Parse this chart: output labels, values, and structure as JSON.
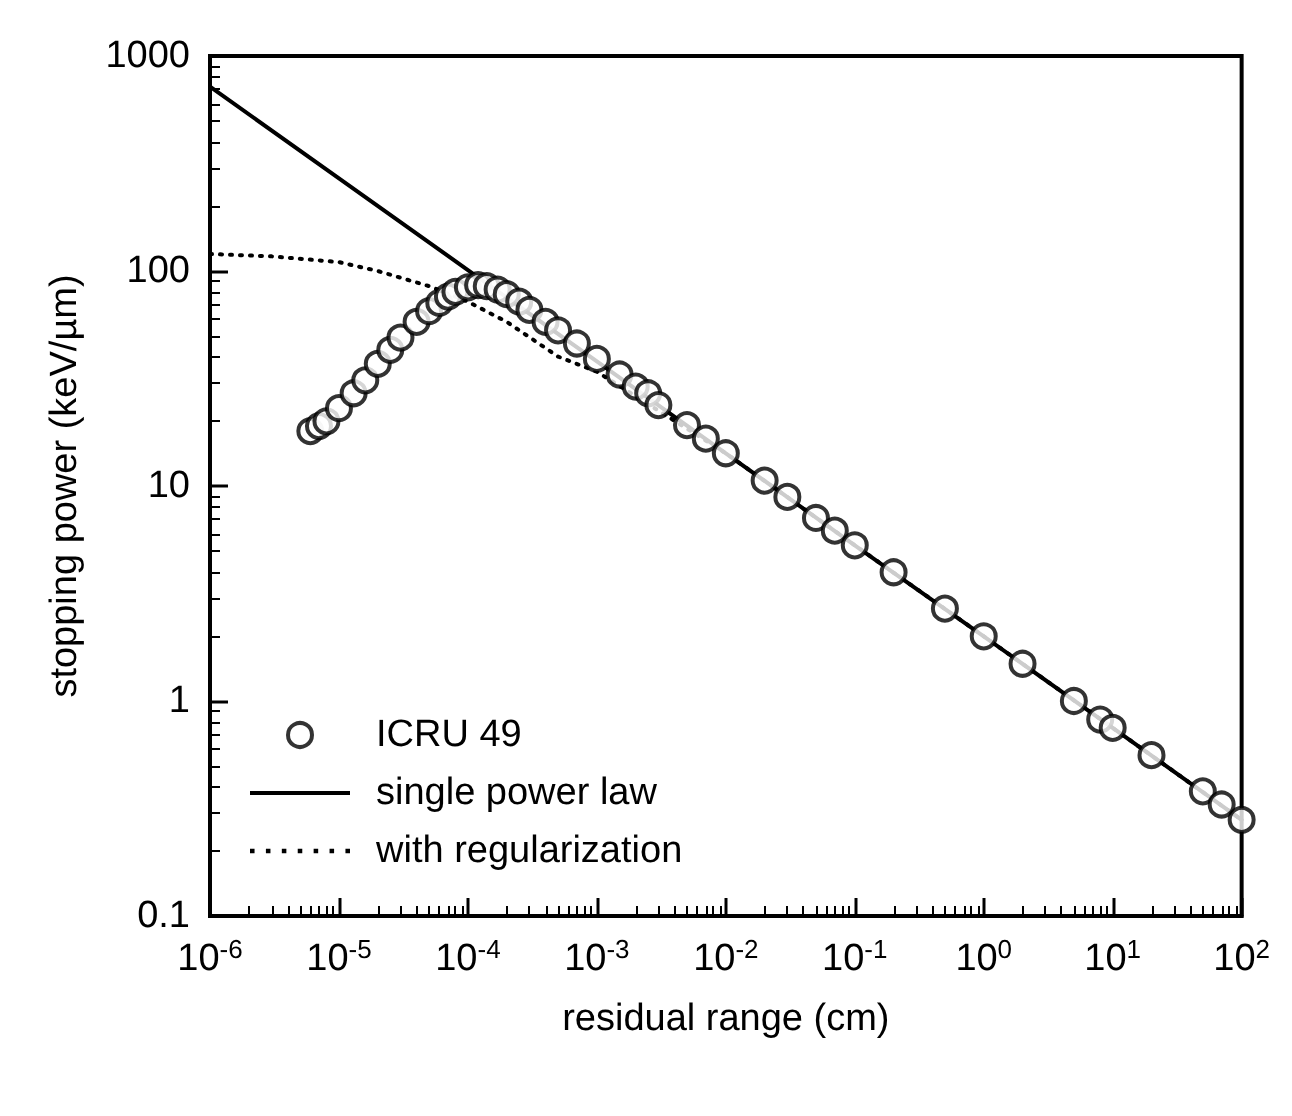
{
  "chart_data": {
    "type": "scatter",
    "xlabel": "residual range (cm)",
    "ylabel": "stopping power (keV/µm)",
    "log": "xy",
    "xlim": [
      1e-06,
      100
    ],
    "ylim": [
      0.1,
      1000
    ],
    "xticks": [
      {
        "value": 1e-06,
        "label": "10$^{-6}$"
      },
      {
        "value": 1e-05,
        "label": "10$^{-5}$"
      },
      {
        "value": 0.0001,
        "label": "10$^{-4}$"
      },
      {
        "value": 0.001,
        "label": "10$^{-3}$"
      },
      {
        "value": 0.01,
        "label": "10$^{-2}$"
      },
      {
        "value": 0.1,
        "label": "10$^{-1}$"
      },
      {
        "value": 1,
        "label": "10$^{0}$"
      },
      {
        "value": 10,
        "label": "10$^{1}$"
      },
      {
        "value": 100,
        "label": "10$^{2}$"
      }
    ],
    "yticks": [
      0.1,
      1,
      10,
      100,
      1000
    ],
    "legend": "bottom left",
    "grid": false,
    "series": [
      {
        "name": "ICRU 49",
        "marker": "circle",
        "color": "#000000",
        "x": [
          6e-06,
          7e-06,
          8e-06,
          1e-05,
          1.3e-05,
          1.6e-05,
          2e-05,
          2.5e-05,
          3e-05,
          4e-05,
          5e-05,
          6e-05,
          7e-05,
          8e-05,
          0.0001,
          0.00012,
          0.00014,
          0.00017,
          0.0002,
          0.00025,
          0.0003,
          0.0004,
          0.0005,
          0.0007,
          0.001,
          0.0015,
          0.002,
          0.0025,
          0.003,
          0.005,
          0.007,
          0.01,
          0.02,
          0.03,
          0.05,
          0.07,
          0.1,
          0.2,
          0.5,
          1,
          2,
          5,
          8,
          10,
          20,
          50,
          70,
          100
        ],
        "values": [
          18,
          19,
          20,
          23,
          27,
          31,
          37,
          43,
          49,
          58,
          65,
          71,
          76,
          80,
          84,
          86,
          85,
          82,
          78,
          72,
          66,
          58,
          53,
          46,
          39,
          33,
          29,
          27,
          23.8,
          19.2,
          16.6,
          14.2,
          10.6,
          8.9,
          7.1,
          6.2,
          5.3,
          3.97,
          2.69,
          2.0,
          1.49,
          1.0,
          0.82,
          0.75,
          0.56,
          0.38,
          0.33,
          0.28
        ]
      },
      {
        "name": "single power law",
        "type": "line",
        "line_style": "solid",
        "marker": "none",
        "color": "#000000",
        "x": [
          1e-06,
          1e-05,
          0.0001,
          0.001,
          0.01,
          0.1,
          1,
          10,
          100
        ],
        "values": [
          720,
          270,
          101,
          38,
          14.2,
          5.3,
          2.0,
          0.75,
          0.28
        ]
      },
      {
        "name": "with regularization",
        "type": "line",
        "line_style": "dotted",
        "marker": "none",
        "color": "#000000",
        "x": [
          1e-06,
          3e-06,
          1e-05,
          2e-05,
          5e-05,
          0.0001,
          0.0002,
          0.0005,
          0.001,
          0.01,
          0.1,
          1,
          10,
          100
        ],
        "values": [
          120,
          117,
          110,
          100,
          85,
          72,
          58,
          40,
          34,
          14.2,
          5.3,
          2.0,
          0.75,
          0.28
        ]
      }
    ]
  }
}
